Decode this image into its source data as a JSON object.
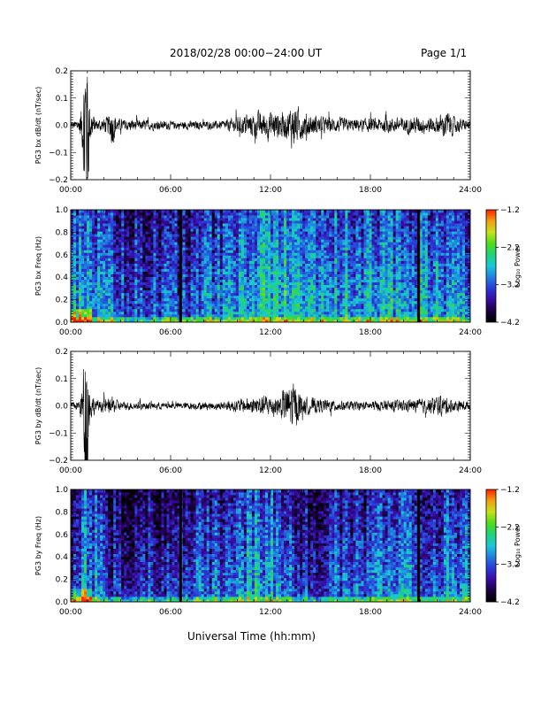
{
  "header": {
    "date": "2018/02/28  00:00−24:00 UT",
    "page": "Page 1/1"
  },
  "xlabel": "Universal Time (hh:mm)",
  "colors": {
    "trace": "#000000",
    "colormap": [
      "#000000",
      "#1a0040",
      "#3a0aa0",
      "#2a3ad8",
      "#1f7fe0",
      "#19c8d8",
      "#1fd27a",
      "#4fdc1a",
      "#c8e01a",
      "#f0a010",
      "#ff2000"
    ]
  },
  "chart_data": [
    {
      "type": "line",
      "ylabel": "PG3 bx dB/dt (nT/sec)",
      "xlim": [
        0,
        24
      ],
      "ylim": [
        -0.2,
        0.2
      ],
      "xticks": [
        "00:00",
        "06:00",
        "12:00",
        "18:00",
        "24:00"
      ],
      "yticks": [
        "0.2",
        "0.1",
        "0.0",
        "−0.1",
        "−0.2"
      ],
      "ytick_values": [
        0.2,
        0.1,
        0.0,
        -0.1,
        -0.2
      ],
      "series_envelope": [
        {
          "t": 0.0,
          "amp": 0.015
        },
        {
          "t": 0.5,
          "amp": 0.03
        },
        {
          "t": 0.7,
          "amp": 0.12
        },
        {
          "t": 0.85,
          "amp": 0.4
        },
        {
          "t": 1.0,
          "amp": 0.4
        },
        {
          "t": 1.15,
          "amp": 0.1
        },
        {
          "t": 1.5,
          "amp": 0.025
        },
        {
          "t": 2.2,
          "amp": 0.04
        },
        {
          "t": 2.5,
          "amp": 0.1
        },
        {
          "t": 2.8,
          "amp": 0.03
        },
        {
          "t": 6.0,
          "amp": 0.02
        },
        {
          "t": 9.0,
          "amp": 0.02
        },
        {
          "t": 10.0,
          "amp": 0.04
        },
        {
          "t": 11.0,
          "amp": 0.06
        },
        {
          "t": 12.0,
          "amp": 0.07
        },
        {
          "t": 13.0,
          "amp": 0.06
        },
        {
          "t": 13.3,
          "amp": 0.11
        },
        {
          "t": 14.0,
          "amp": 0.06
        },
        {
          "t": 15.0,
          "amp": 0.04
        },
        {
          "t": 17.0,
          "amp": 0.03
        },
        {
          "t": 20.5,
          "amp": 0.04
        },
        {
          "t": 22.0,
          "amp": 0.04
        },
        {
          "t": 22.7,
          "amp": 0.07
        },
        {
          "t": 23.0,
          "amp": 0.04
        },
        {
          "t": 24.0,
          "amp": 0.02
        }
      ]
    },
    {
      "type": "heatmap",
      "ylabel": "PG3 bx Freq (Hz)",
      "xlim": [
        0,
        24
      ],
      "ylim": [
        0,
        1.0
      ],
      "xticks": [
        "00:00",
        "06:00",
        "12:00",
        "18:00",
        "24:00"
      ],
      "yticks": [
        "1.0",
        "0.8",
        "0.6",
        "0.4",
        "0.2",
        "0.0"
      ],
      "ytick_values": [
        1.0,
        0.8,
        0.6,
        0.4,
        0.2,
        0.0
      ],
      "colorbar": {
        "label": "Log₁₀ Power",
        "range": [
          -4.2,
          -1.2
        ],
        "ticks": [
          "−1.2",
          "−2.2",
          "−3.2",
          "−4.2"
        ],
        "tick_values": [
          -1.2,
          -2.2,
          -3.2,
          -4.2
        ]
      },
      "activity": [
        {
          "t": 0.0,
          "level": 0.45
        },
        {
          "t": 1.0,
          "level": 0.55
        },
        {
          "t": 3.0,
          "level": 0.35
        },
        {
          "t": 6.0,
          "level": 0.35
        },
        {
          "t": 10.0,
          "level": 0.45
        },
        {
          "t": 12.0,
          "level": 0.6
        },
        {
          "t": 14.0,
          "level": 0.5
        },
        {
          "t": 16.0,
          "level": 0.5
        },
        {
          "t": 20.0,
          "level": 0.5
        },
        {
          "t": 24.0,
          "level": 0.45
        }
      ],
      "data_gap_times": [
        6.6,
        20.9
      ]
    },
    {
      "type": "line",
      "ylabel": "PG3 by dB/dt (nT/sec)",
      "xlim": [
        0,
        24
      ],
      "ylim": [
        -0.2,
        0.2
      ],
      "xticks": [
        "00:00",
        "06:00",
        "12:00",
        "18:00",
        "24:00"
      ],
      "yticks": [
        "0.2",
        "0.1",
        "0.0",
        "−0.1",
        "−0.2"
      ],
      "ytick_values": [
        0.2,
        0.1,
        0.0,
        -0.1,
        -0.2
      ],
      "series_envelope": [
        {
          "t": 0.0,
          "amp": 0.015
        },
        {
          "t": 0.5,
          "amp": 0.03
        },
        {
          "t": 0.7,
          "amp": 0.1
        },
        {
          "t": 0.85,
          "amp": 0.4
        },
        {
          "t": 1.0,
          "amp": 0.4
        },
        {
          "t": 1.15,
          "amp": 0.08
        },
        {
          "t": 1.5,
          "amp": 0.025
        },
        {
          "t": 2.5,
          "amp": 0.04
        },
        {
          "t": 3.0,
          "amp": 0.02
        },
        {
          "t": 6.0,
          "amp": 0.015
        },
        {
          "t": 9.0,
          "amp": 0.02
        },
        {
          "t": 10.5,
          "amp": 0.035
        },
        {
          "t": 11.5,
          "amp": 0.05
        },
        {
          "t": 12.5,
          "amp": 0.05
        },
        {
          "t": 13.3,
          "amp": 0.12
        },
        {
          "t": 14.0,
          "amp": 0.04
        },
        {
          "t": 17.0,
          "amp": 0.02
        },
        {
          "t": 21.0,
          "amp": 0.03
        },
        {
          "t": 22.2,
          "amp": 0.05
        },
        {
          "t": 23.0,
          "amp": 0.03
        },
        {
          "t": 24.0,
          "amp": 0.02
        }
      ]
    },
    {
      "type": "heatmap",
      "ylabel": "PG3 by Freq (Hz)",
      "xlim": [
        0,
        24
      ],
      "ylim": [
        0,
        1.0
      ],
      "xticks": [
        "00:00",
        "06:00",
        "12:00",
        "18:00",
        "24:00"
      ],
      "yticks": [
        "1.0",
        "0.8",
        "0.6",
        "0.4",
        "0.2",
        "0.0"
      ],
      "ytick_values": [
        1.0,
        0.8,
        0.6,
        0.4,
        0.2,
        0.0
      ],
      "colorbar": {
        "label": "Log₁₀ Power",
        "range": [
          -4.2,
          -1.2
        ],
        "ticks": [
          "−1.2",
          "−2.2",
          "−3.2",
          "−4.2"
        ],
        "tick_values": [
          -1.2,
          -2.2,
          -3.2,
          -4.2
        ]
      },
      "activity": [
        {
          "t": 0.0,
          "level": 0.35
        },
        {
          "t": 1.0,
          "level": 0.5
        },
        {
          "t": 3.0,
          "level": 0.25
        },
        {
          "t": 6.0,
          "level": 0.3
        },
        {
          "t": 10.0,
          "level": 0.45
        },
        {
          "t": 12.0,
          "level": 0.5
        },
        {
          "t": 14.0,
          "level": 0.3
        },
        {
          "t": 16.0,
          "level": 0.35
        },
        {
          "t": 20.0,
          "level": 0.4
        },
        {
          "t": 24.0,
          "level": 0.45
        }
      ],
      "data_gap_times": [
        6.6,
        20.9
      ]
    }
  ]
}
